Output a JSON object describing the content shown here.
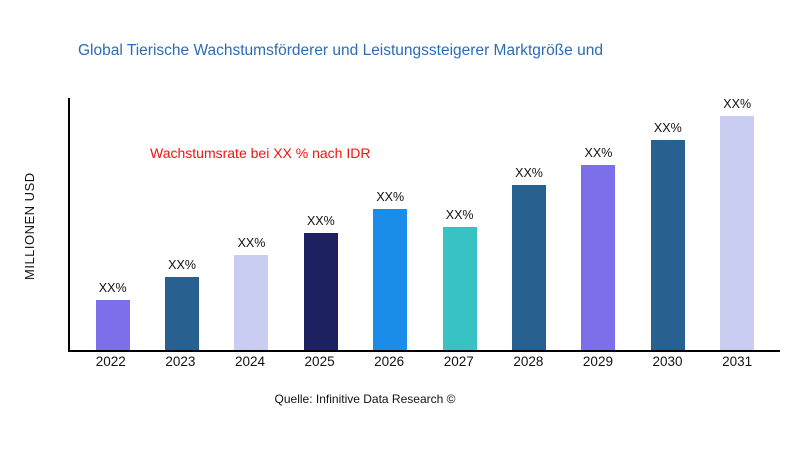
{
  "header": {
    "title": "Global Tierische Wachstumsförderer und Leistungssteigerer Marktgröße und"
  },
  "annotation": {
    "growth_note": "Wachstumsrate bei XX % nach IDR",
    "color": "#f31212"
  },
  "axes": {
    "ylabel": "MILLIONEN USD"
  },
  "footer": {
    "source": "Quelle: Infinitive Data Research ©"
  },
  "palette": {
    "title_blue": "#2a6db5",
    "axis_black": "#000000"
  },
  "chart_data": {
    "type": "bar",
    "title": "Global Tierische Wachstumsförderer und Leistungssteigerer Marktgröße und",
    "xlabel": "",
    "ylabel": "MILLIONEN USD",
    "categories": [
      "2022",
      "2023",
      "2024",
      "2025",
      "2026",
      "2027",
      "2028",
      "2029",
      "2030",
      "2031"
    ],
    "values": [
      50,
      72,
      94,
      116,
      140,
      122,
      164,
      184,
      208,
      232
    ],
    "ylim": [
      0,
      250
    ],
    "grid": false,
    "legend": "none",
    "bar_labels": [
      "XX%",
      "XX%",
      "XX%",
      "XX%",
      "XX%",
      "XX%",
      "XX%",
      "XX%",
      "XX%",
      "XX%"
    ],
    "bar_colors": [
      "#7c6fe9",
      "#28608f",
      "#c9cdf2",
      "#1e2160",
      "#1b8ce8",
      "#38c2c4",
      "#28608f",
      "#7c6fe9",
      "#28608f",
      "#c9cdf2"
    ],
    "annotation": "Wachstumsrate bei XX % nach IDR",
    "source": "Quelle: Infinitive Data Research ©"
  }
}
